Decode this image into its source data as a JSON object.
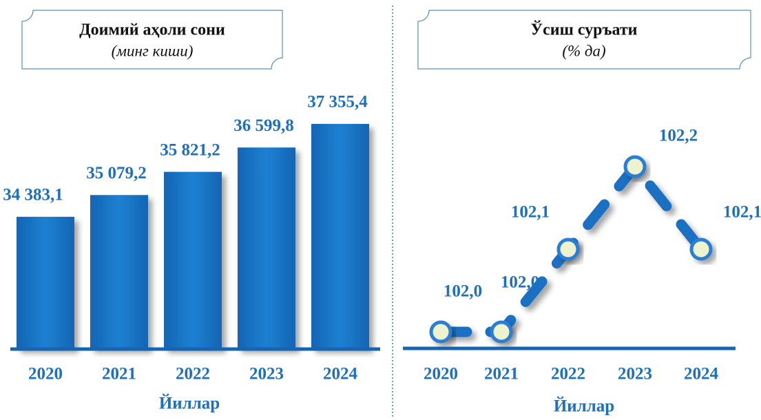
{
  "chart_data": [
    {
      "type": "bar",
      "title": "Доимий аҳоли сони",
      "subtitle": "(минг киши)",
      "x_label": "Йиллар",
      "categories": [
        "2020",
        "2021",
        "2022",
        "2023",
        "2024"
      ],
      "values": [
        34383.1,
        35079.2,
        35821.2,
        36599.8,
        37355.4
      ],
      "value_labels": [
        "34 383,1",
        "35 079,2",
        "35 821,2",
        "36 599,8",
        "37 355,4"
      ],
      "color": "#1a76c6",
      "ylim": [
        30150,
        38500
      ]
    },
    {
      "type": "line",
      "title": "Ўсиш суръати",
      "subtitle": "(% да)",
      "x_label": "Йиллар",
      "categories": [
        "2020",
        "2021",
        "2022",
        "2023",
        "2024"
      ],
      "values": [
        102.0,
        102.0,
        102.1,
        102.2,
        102.1
      ],
      "value_labels": [
        "102,0",
        "102,0",
        "102,1",
        "102,2",
        "102,1"
      ],
      "color": "#1a6fc2",
      "ylim": [
        101.98,
        102.3
      ]
    }
  ]
}
